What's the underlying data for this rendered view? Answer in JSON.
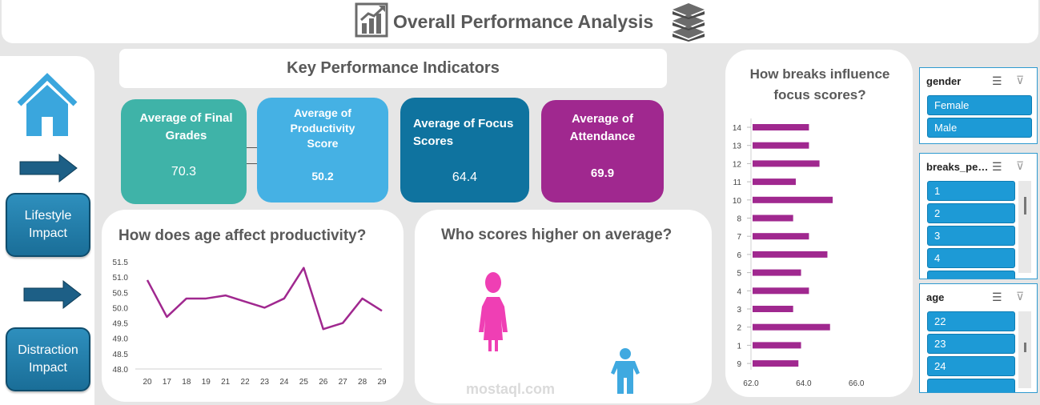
{
  "header": {
    "title": "Overall Performance Analysis"
  },
  "nav": {
    "lifestyle_label": "Lifestyle Impact",
    "distraction_label": "Distraction Impact"
  },
  "kpi": {
    "header": "Key Performance Indicators",
    "cards": [
      {
        "label": "Average of Final Grades",
        "value": "70.3",
        "color": "#3fb3a8"
      },
      {
        "label": "Average of Productivity Score",
        "value": "50.2",
        "color": "#45b1e4"
      },
      {
        "label": "Average of Focus Scores",
        "value": "64.4",
        "color": "#0f739f"
      },
      {
        "label": "Average of Attendance",
        "value": "69.9",
        "color": "#a0288f"
      }
    ]
  },
  "age_chart": {
    "title": "How does age affect productivity?"
  },
  "gender_chart": {
    "title": "Who scores higher on average?",
    "watermark": "mostaql.com"
  },
  "breaks_chart": {
    "title": "How breaks influence focus scores?"
  },
  "slicers": {
    "gender": {
      "title": "gender",
      "items": [
        "Female",
        "Male"
      ]
    },
    "breaks": {
      "title": "breaks_pe…",
      "items": [
        "1",
        "2",
        "3",
        "4"
      ]
    },
    "age": {
      "title": "age",
      "items": [
        "22",
        "23",
        "24"
      ]
    }
  },
  "colors": {
    "accent": "#a0288f",
    "female": "#ef3fb4",
    "male": "#3fa9e0",
    "slicer": "#1d9ad6"
  },
  "chart_data": [
    {
      "type": "line",
      "title": "How does age affect productivity?",
      "categories": [
        "20",
        "17",
        "18",
        "19",
        "21",
        "22",
        "23",
        "24",
        "25",
        "26",
        "27",
        "28",
        "29"
      ],
      "series": [
        {
          "values": [
            50.9,
            49.7,
            50.3,
            50.3,
            50.4,
            50.2,
            50.0,
            50.3,
            51.3,
            49.3,
            49.5,
            50.3,
            49.9
          ]
        }
      ],
      "ylim": [
        48.0,
        51.5
      ],
      "yticks": [
        "51.5",
        "51.0",
        "50.5",
        "50.0",
        "49.5",
        "49.0",
        "48.5",
        "48.0"
      ],
      "color": "#a0288f"
    },
    {
      "type": "bar",
      "orientation": "horizontal",
      "title": "How breaks influence focus scores?",
      "categories": [
        "14",
        "13",
        "12",
        "11",
        "10",
        "8",
        "7",
        "6",
        "5",
        "4",
        "3",
        "2",
        "1",
        "9"
      ],
      "values": [
        64.2,
        64.2,
        64.6,
        63.7,
        65.1,
        63.6,
        64.2,
        64.9,
        63.9,
        64.2,
        63.6,
        65.0,
        63.9,
        63.8
      ],
      "xlim": [
        62.0,
        66.8
      ],
      "xticks": [
        "62.0",
        "64.0",
        "66.0"
      ],
      "color": "#a0288f"
    },
    {
      "type": "pictograph",
      "title": "Who scores higher on average?",
      "categories": [
        "Female",
        "Male"
      ]
    }
  ]
}
